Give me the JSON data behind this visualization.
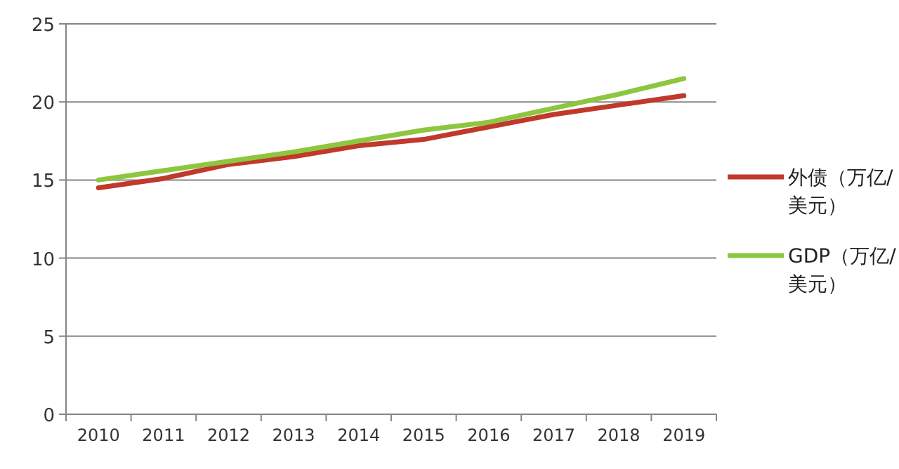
{
  "chart_data": {
    "type": "line",
    "categories": [
      "2010",
      "2011",
      "2012",
      "2013",
      "2014",
      "2015",
      "2016",
      "2017",
      "2018",
      "2019"
    ],
    "series": [
      {
        "name": "外债（万亿/美元）",
        "color": "#c0392b",
        "values": [
          14.5,
          15.1,
          16.0,
          16.5,
          17.2,
          17.6,
          18.4,
          19.2,
          19.8,
          20.4
        ]
      },
      {
        "name": "GDP（万亿/美元）",
        "color": "#8dc63f",
        "values": [
          15.0,
          15.6,
          16.2,
          16.8,
          17.5,
          18.2,
          18.7,
          19.6,
          20.5,
          21.5
        ]
      }
    ],
    "ylim": [
      0,
      25
    ],
    "yticks": [
      0,
      5,
      10,
      15,
      20,
      25
    ],
    "grid": "y",
    "legend": "right",
    "marker": "none",
    "line_style": "solid"
  }
}
